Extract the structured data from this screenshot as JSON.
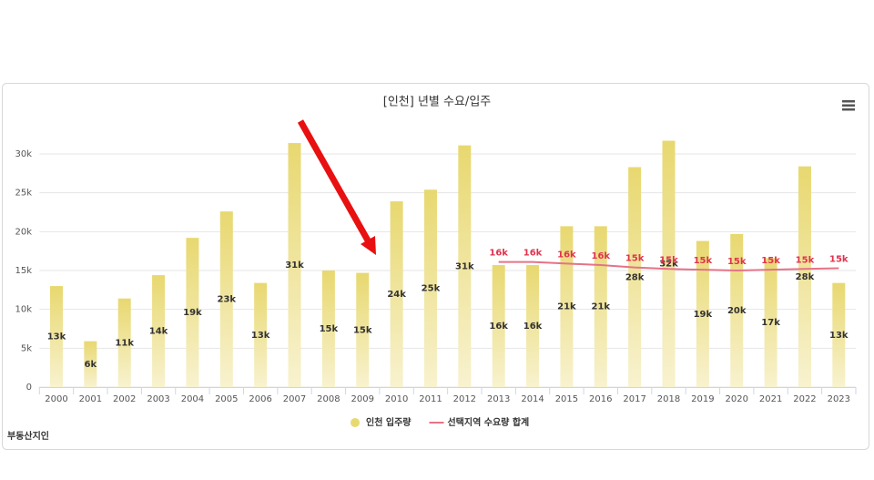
{
  "chart_data": {
    "type": "bar",
    "title": "[인천] 년별 수요/입주",
    "logo": "부동산지인",
    "categories": [
      "2000",
      "2001",
      "2002",
      "2003",
      "2004",
      "2005",
      "2006",
      "2007",
      "2008",
      "2009",
      "2010",
      "2011",
      "2012",
      "2013",
      "2014",
      "2015",
      "2016",
      "2017",
      "2018",
      "2019",
      "2020",
      "2021",
      "2022",
      "2023"
    ],
    "series": [
      {
        "name": "인천 입주량",
        "type": "bar",
        "color": "#e8d870",
        "values": [
          13000,
          5900,
          11400,
          14400,
          19200,
          22600,
          13400,
          31400,
          15000,
          14700,
          23900,
          25400,
          31100,
          15700,
          15700,
          20700,
          20700,
          28300,
          31700,
          18800,
          19700,
          16600,
          28400,
          13400
        ],
        "value_labels": [
          "13k",
          "6k",
          "11k",
          "14k",
          "19k",
          "23k",
          "13k",
          "31k",
          "15k",
          "15k",
          "24k",
          "25k",
          "31k",
          "16k",
          "16k",
          "21k",
          "21k",
          "28k",
          "32k",
          "19k",
          "20k",
          "17k",
          "28k",
          "13k"
        ]
      },
      {
        "name": "선택지역 수요량 합계",
        "type": "line",
        "color": "#e57388",
        "values": [
          null,
          null,
          null,
          null,
          null,
          null,
          null,
          null,
          null,
          null,
          null,
          null,
          null,
          16100,
          16100,
          15900,
          15700,
          15400,
          15200,
          15100,
          15000,
          15100,
          15200,
          15300
        ],
        "value_labels": [
          null,
          null,
          null,
          null,
          null,
          null,
          null,
          null,
          null,
          null,
          null,
          null,
          null,
          "16k",
          "16k",
          "16k",
          "16k",
          "15k",
          "15k",
          "15k",
          "15k",
          "15k",
          "15k",
          "15k"
        ]
      }
    ],
    "ylim": [
      0,
      32000
    ],
    "yticks": [
      0,
      {
        "value": 5000,
        "label": "5k"
      },
      {
        "value": 10000,
        "label": "10k"
      },
      {
        "value": 15000,
        "label": "15k"
      },
      {
        "value": 20000,
        "label": "20k"
      },
      {
        "value": 25000,
        "label": "25k"
      },
      {
        "value": 30000,
        "label": "30k"
      }
    ],
    "grid": true,
    "legend": "bottom"
  }
}
